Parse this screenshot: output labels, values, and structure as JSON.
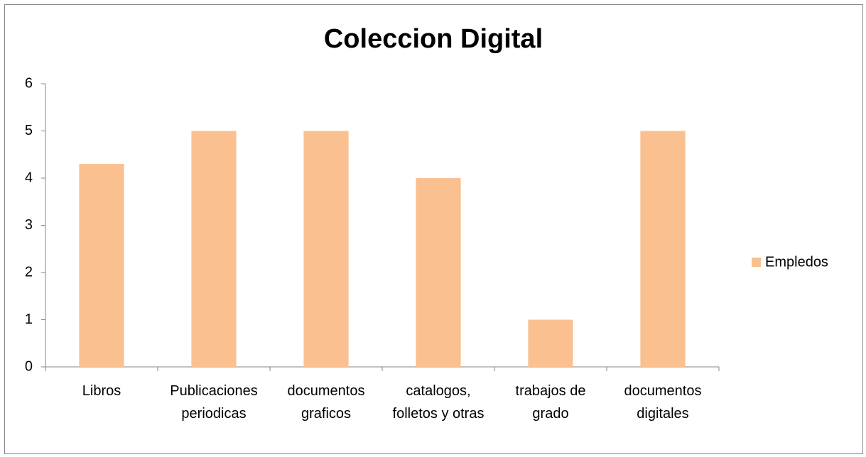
{
  "chart_data": {
    "type": "bar",
    "title": "Coleccion Digital",
    "categories": [
      "Libros",
      "Publicaciones periodicas",
      "documentos graficos",
      "catalogos, folletos y otras",
      "trabajos de grado",
      "documentos digitales"
    ],
    "series": [
      {
        "name": "Empledos",
        "color": "#fac090",
        "values": [
          4.3,
          5,
          5,
          4,
          1,
          5
        ]
      }
    ],
    "ylim": [
      0,
      6
    ],
    "yticks": [
      0,
      1,
      2,
      3,
      4,
      5,
      6
    ],
    "grid": false,
    "legend": "right"
  }
}
